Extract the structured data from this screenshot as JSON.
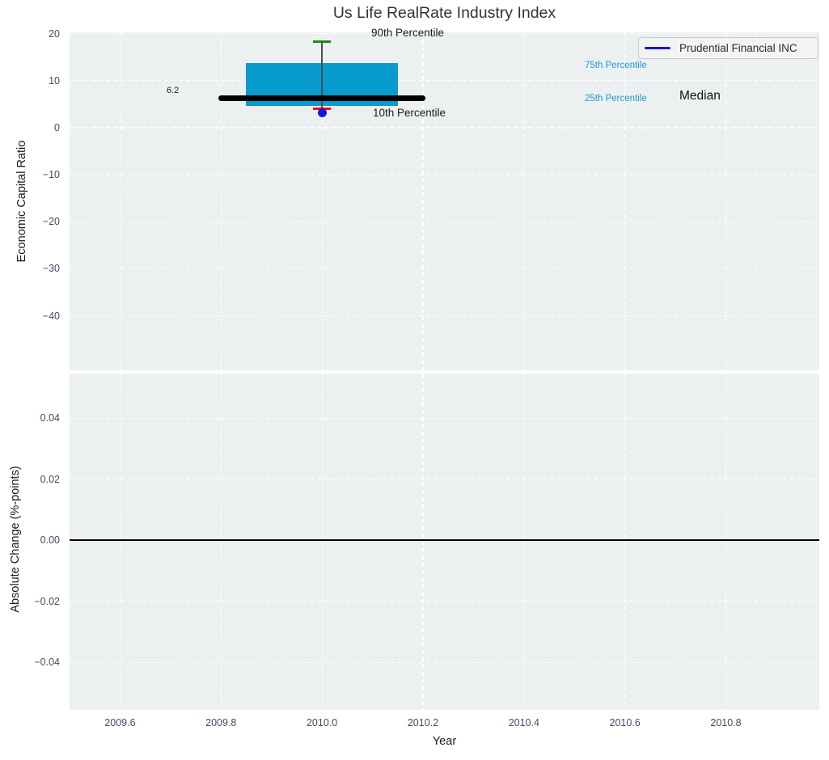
{
  "title": "Us Life RealRate Industry Index",
  "colors": {
    "panel_bg": "#edf0f1",
    "grid": "#ffffff",
    "box_fill": "#089bcd",
    "median_line": "#000000",
    "p90_cap": "#1b8a1b",
    "p10_cap": "#ff0000",
    "whisker": "#4d4d4d",
    "company_marker": "#1414e6",
    "legend_line": "#1414e6",
    "percentile_label": "#1a9cd4",
    "tick_label": "#3d4d63",
    "zero_line": "#000000"
  },
  "legend": {
    "entries": [
      {
        "label": "Prudential Financial INC",
        "color": "#1414e6"
      }
    ]
  },
  "annotations": {
    "p90": "90th Percentile",
    "p10": "10th Percentile",
    "p75": "75th Percentile",
    "p25": "25th Percentile",
    "median": "Median",
    "median_value": "6.2"
  },
  "chart_data": {
    "type": "boxplot",
    "title": "Us Life RealRate Industry Index",
    "xlabel": "Year",
    "xlim": [
      2009.5,
      2010.985
    ],
    "xticks": [
      {
        "v": 2009.6,
        "label": "2009.6"
      },
      {
        "v": 2009.8,
        "label": "2009.8"
      },
      {
        "v": 2010.0,
        "label": "2010.0"
      },
      {
        "v": 2010.2,
        "label": "2010.2"
      },
      {
        "v": 2010.4,
        "label": "2010.4"
      },
      {
        "v": 2010.6,
        "label": "2010.6"
      },
      {
        "v": 2010.8,
        "label": "2010.8"
      }
    ],
    "grid": "white dashed gridlines on light panel, no spines",
    "legend_position": "upper right",
    "panels": [
      {
        "ylabel": "Economic Capital Ratio",
        "ylim": [
          -51.6,
          20.3
        ],
        "yticks": [
          {
            "v": 20,
            "label": "20"
          },
          {
            "v": 10,
            "label": "10"
          },
          {
            "v": 0,
            "label": "0"
          },
          {
            "v": -10,
            "label": "−10"
          },
          {
            "v": -20,
            "label": "−20"
          },
          {
            "v": -30,
            "label": "−30"
          },
          {
            "v": -40,
            "label": "−40"
          }
        ],
        "box": {
          "center_x": 2010.0,
          "p90": 18.4,
          "q3": 13.8,
          "median": 6.2,
          "q1": 4.7,
          "p10": 4.0,
          "box_halfwidth_yr": 0.15,
          "median_halfwidth_yr": 0.205,
          "cap_halfwidth_yr": 0.018
        },
        "company_point": {
          "label": "Prudential Financial INC",
          "x": 2010.0,
          "y": 3.2
        }
      },
      {
        "ylabel": "Absolute Change (%-points)",
        "ylim": [
          -0.0556,
          0.0546
        ],
        "yticks": [
          {
            "v": 0.04,
            "label": "0.04"
          },
          {
            "v": 0.02,
            "label": "0.02"
          },
          {
            "v": 0.0,
            "label": "0.00"
          },
          {
            "v": -0.02,
            "label": "−0.02"
          },
          {
            "v": -0.04,
            "label": "−0.04"
          }
        ],
        "zero_line_y": 0.0
      }
    ]
  }
}
